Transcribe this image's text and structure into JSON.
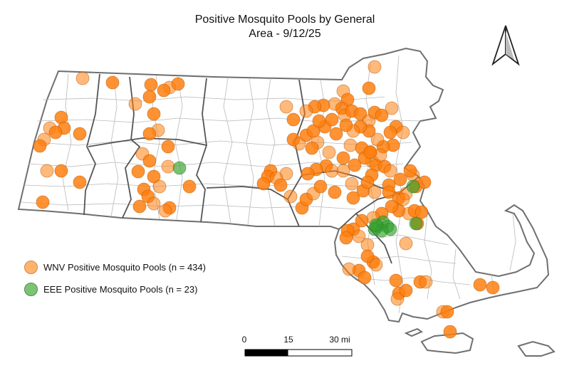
{
  "title_line1": "Positive Mosquito Pools by General",
  "title_line2": "Area - 9/12/25",
  "north_arrow_icon": "north-arrow-icon",
  "colors": {
    "wnv_fill": "#ff7f0e",
    "wnv_stroke": "#b85600",
    "eee_fill": "#33a02c",
    "eee_stroke": "#2a7d25",
    "outline": "#6f6f6f",
    "town_lines": "#a9a9a9",
    "region_lines": "#555555"
  },
  "legend": {
    "wnv_label": "WNV Positive Mosquito Pools (n = 434)",
    "eee_label": "EEE Positive Mosquito Pools (n = 23)"
  },
  "scale_bar": {
    "label_0": "0",
    "label_15": "15",
    "label_30": "30 mi"
  }
}
